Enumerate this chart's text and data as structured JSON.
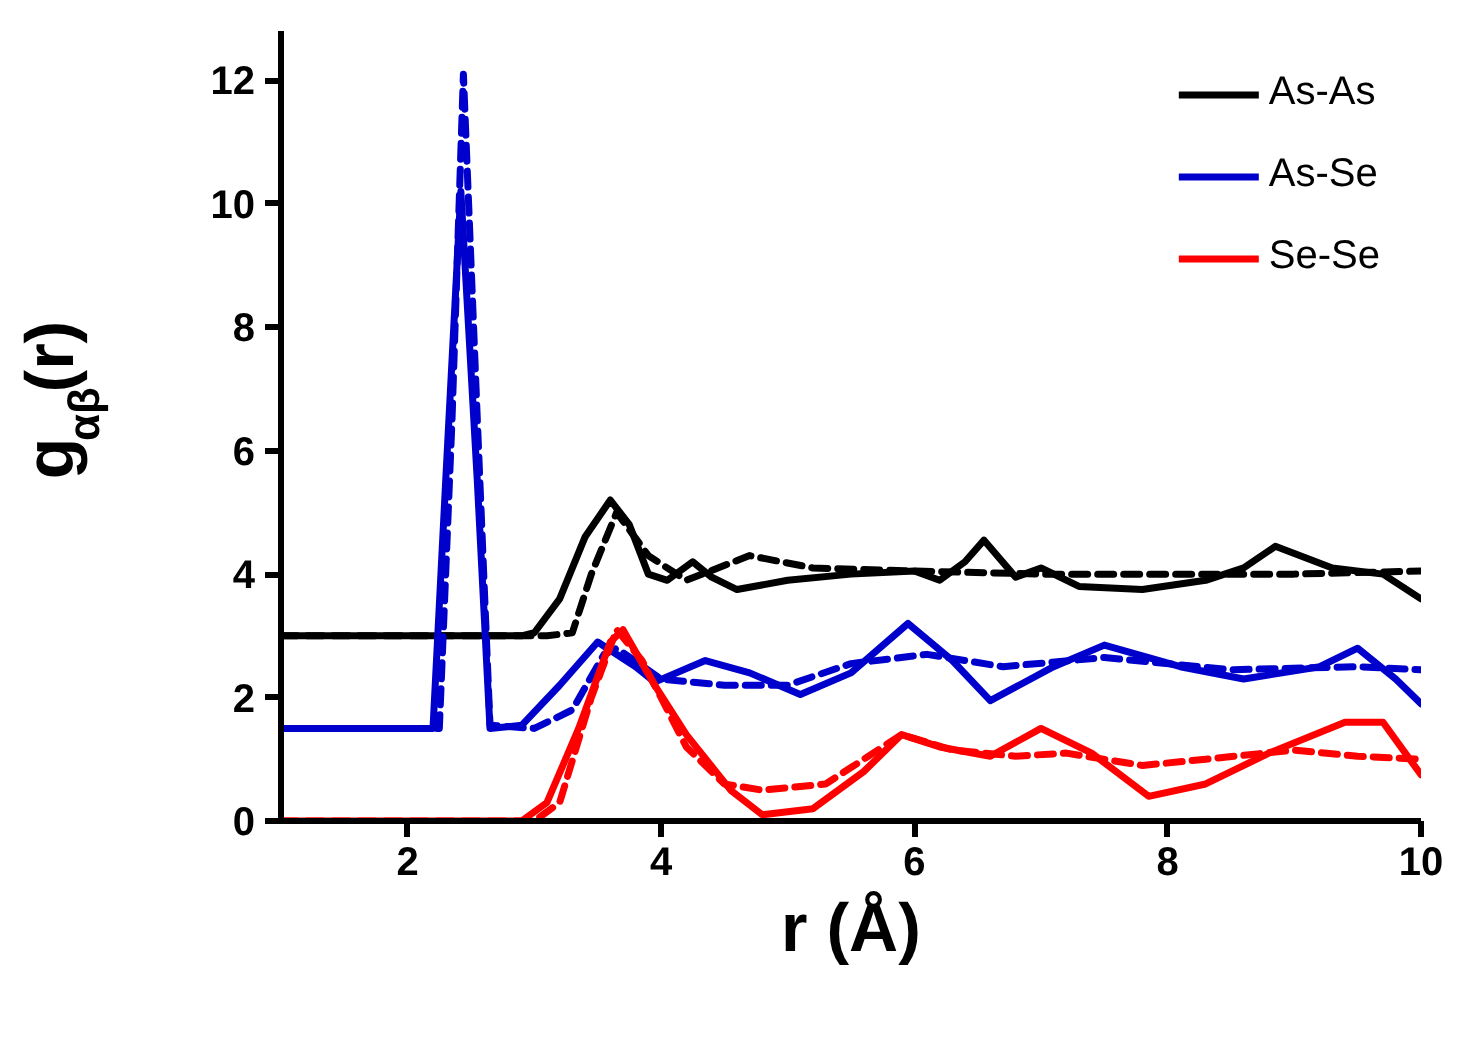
{
  "chart_data": {
    "type": "line",
    "xlabel": "r (Å)",
    "ylabel": "g$_{αβ}$(r)",
    "xlim": [
      1,
      10
    ],
    "ylim": [
      0,
      12.8
    ],
    "xticks": [
      2,
      4,
      6,
      8,
      10
    ],
    "yticks": [
      0,
      2,
      4,
      6,
      8,
      10,
      12
    ],
    "grid": false,
    "legend": "top right",
    "marker": "none",
    "series": [
      {
        "name": "As-As",
        "color": "#000000",
        "line_style": "solid",
        "x": [
          1,
          2.9,
          3.0,
          3.2,
          3.4,
          3.6,
          3.75,
          3.9,
          4.05,
          4.25,
          4.4,
          4.6,
          5.0,
          5.5,
          6.0,
          6.2,
          6.4,
          6.55,
          6.8,
          7.0,
          7.3,
          7.8,
          8.3,
          8.6,
          8.85,
          9.3,
          9.7,
          10
        ],
        "values": [
          3.0,
          3.0,
          3.05,
          3.6,
          4.6,
          5.2,
          4.8,
          4.0,
          3.9,
          4.2,
          3.95,
          3.75,
          3.9,
          4.0,
          4.05,
          3.9,
          4.2,
          4.55,
          3.95,
          4.1,
          3.8,
          3.75,
          3.9,
          4.1,
          4.45,
          4.1,
          4.0,
          3.6
        ]
      },
      {
        "color": "#000000",
        "line_style": "dashed",
        "x": [
          1,
          3.1,
          3.3,
          3.45,
          3.65,
          3.9,
          4.2,
          4.7,
          5.2,
          6,
          7,
          8,
          9,
          10
        ],
        "values": [
          3.0,
          3.0,
          3.05,
          4.0,
          5.0,
          4.3,
          3.9,
          4.3,
          4.1,
          4.05,
          4.0,
          4.0,
          4.0,
          4.05
        ]
      },
      {
        "name": "As-Se",
        "color": "#0000cc",
        "line_style": "solid",
        "x": [
          1,
          2.2,
          2.3,
          2.42,
          2.55,
          2.65,
          2.9,
          3.2,
          3.5,
          3.8,
          3.95,
          4.35,
          4.7,
          5.1,
          5.5,
          5.95,
          6.3,
          6.6,
          7.1,
          7.5,
          8.1,
          8.6,
          9.2,
          9.5,
          9.8,
          10
        ],
        "values": [
          1.5,
          1.5,
          5.5,
          10.2,
          5.5,
          1.5,
          1.55,
          2.2,
          2.9,
          2.5,
          2.25,
          2.6,
          2.4,
          2.05,
          2.4,
          3.2,
          2.6,
          1.95,
          2.5,
          2.85,
          2.5,
          2.3,
          2.5,
          2.8,
          2.3,
          1.9
        ]
      },
      {
        "color": "#0000cc",
        "line_style": "dashed",
        "x": [
          1,
          2.25,
          2.35,
          2.44,
          2.55,
          2.65,
          3.0,
          3.3,
          3.55,
          3.65,
          4.0,
          4.5,
          5.0,
          5.5,
          6.1,
          6.7,
          7.5,
          8.5,
          9.5,
          10
        ],
        "values": [
          1.5,
          1.5,
          6.5,
          12.1,
          6.5,
          1.55,
          1.5,
          1.8,
          2.7,
          2.8,
          2.3,
          2.2,
          2.2,
          2.55,
          2.7,
          2.5,
          2.65,
          2.45,
          2.5,
          2.45
        ]
      },
      {
        "name": "Se-Se",
        "color": "#ff0000",
        "line_style": "solid",
        "x": [
          1,
          2.9,
          3.1,
          3.35,
          3.6,
          3.7,
          3.95,
          4.2,
          4.55,
          4.8,
          5.2,
          5.6,
          5.9,
          6.2,
          6.6,
          7.0,
          7.4,
          7.85,
          8.3,
          8.8,
          9.4,
          9.7,
          10
        ],
        "values": [
          0,
          0,
          0.3,
          1.5,
          2.9,
          3.1,
          2.2,
          1.4,
          0.5,
          0.1,
          0.2,
          0.8,
          1.4,
          1.2,
          1.05,
          1.5,
          1.1,
          0.4,
          0.6,
          1.1,
          1.6,
          1.6,
          0.75
        ]
      },
      {
        "color": "#ff0000",
        "line_style": "dashed",
        "x": [
          1,
          3.0,
          3.2,
          3.45,
          3.65,
          3.85,
          4.2,
          4.5,
          4.8,
          5.3,
          5.9,
          6.3,
          6.8,
          7.2,
          7.8,
          8.3,
          9,
          9.5,
          10
        ],
        "values": [
          0,
          0,
          0.3,
          2.0,
          3.1,
          2.6,
          1.2,
          0.6,
          0.5,
          0.6,
          1.4,
          1.15,
          1.05,
          1.1,
          0.9,
          1.0,
          1.15,
          1.05,
          1.0
        ]
      }
    ]
  }
}
